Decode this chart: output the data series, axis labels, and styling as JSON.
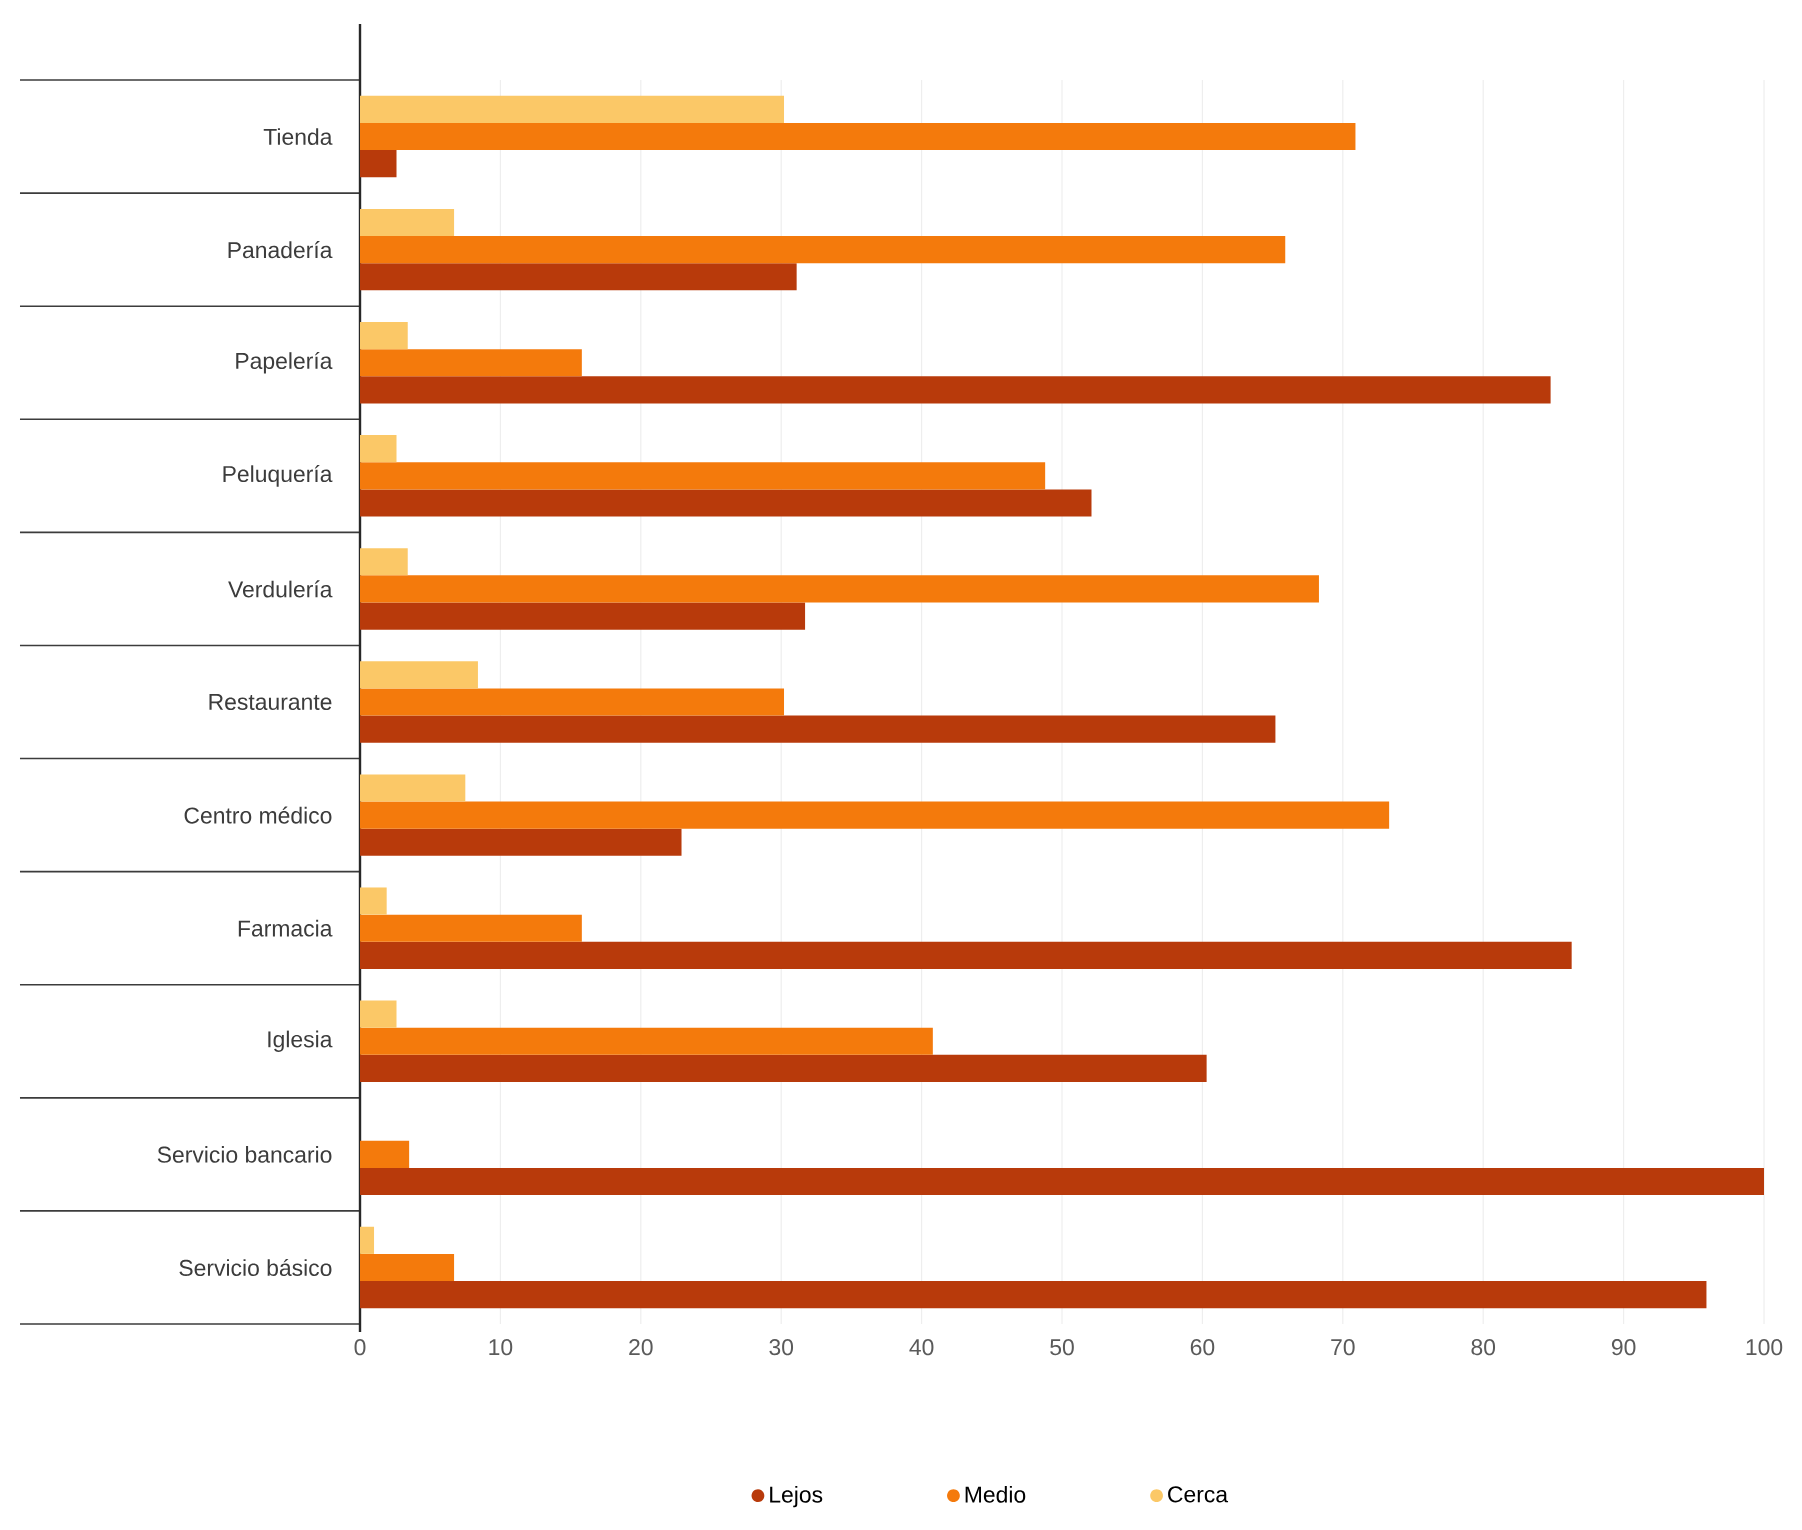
{
  "chart_data": {
    "type": "bar",
    "orientation": "horizontal",
    "categories": [
      "Tienda",
      "Panadería",
      "Papelería",
      "Peluquería",
      "Verdulería",
      "Restaurante",
      "Centro médico",
      "Farmacia",
      "Iglesia",
      "Servicio bancario",
      "Servicio básico"
    ],
    "series": [
      {
        "name": "Lejos",
        "color": "#b83a0b",
        "values": [
          2.6,
          31.1,
          84.8,
          52.1,
          31.7,
          65.2,
          22.9,
          86.3,
          60.3,
          100,
          95.9
        ]
      },
      {
        "name": "Medio",
        "color": "#f47a0c",
        "values": [
          70.9,
          65.9,
          15.8,
          48.8,
          68.3,
          30.2,
          73.3,
          15.8,
          40.8,
          3.5,
          6.7
        ]
      },
      {
        "name": "Cerca",
        "color": "#fbc867",
        "values": [
          30.2,
          6.7,
          3.4,
          2.6,
          3.4,
          8.4,
          7.5,
          1.9,
          2.6,
          null,
          1.0
        ]
      }
    ],
    "xlim": [
      0,
      100
    ],
    "xticks": [
      0,
      10,
      20,
      30,
      40,
      50,
      60,
      70,
      80,
      90,
      100
    ],
    "grid": "x",
    "legend": "bottom"
  }
}
